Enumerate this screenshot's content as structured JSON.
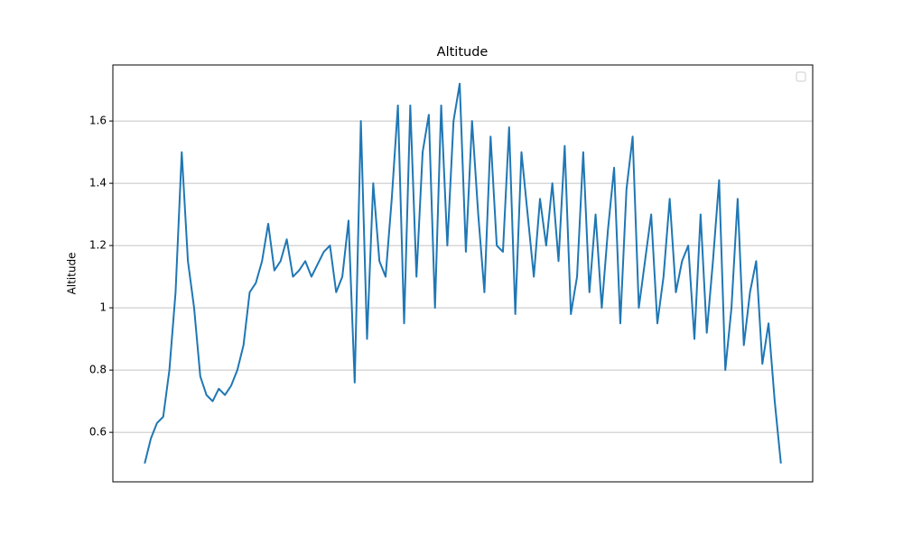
{
  "chart_data": {
    "type": "line",
    "title": "Altitude",
    "y_label": "Altitude",
    "x": [
      0,
      1,
      2,
      3,
      4,
      5,
      6,
      7,
      8,
      9,
      10,
      11,
      12,
      13,
      14,
      15,
      16,
      17,
      18,
      19,
      20,
      21,
      22,
      23,
      24,
      25,
      26,
      27,
      28,
      29,
      30,
      31,
      32,
      33,
      34,
      35,
      36,
      37,
      38,
      39,
      40,
      41,
      42,
      43,
      44,
      45,
      46,
      47,
      48,
      49,
      50,
      51,
      52,
      53,
      54,
      55,
      56,
      57,
      58,
      59,
      60,
      61,
      62,
      63,
      64,
      65,
      66,
      67,
      68,
      69,
      70,
      71,
      72,
      73,
      74,
      75,
      76,
      77,
      78,
      79,
      80,
      81,
      82,
      83,
      84,
      85,
      86,
      87,
      88,
      89,
      90,
      91,
      92,
      93,
      94,
      95,
      96,
      97,
      98,
      99,
      100,
      101,
      102,
      103
    ],
    "series": [
      {
        "color": "#1f77b4",
        "values": [
          0.5,
          0.58,
          0.63,
          0.65,
          0.8,
          1.05,
          1.5,
          1.15,
          1.0,
          0.78,
          0.72,
          0.7,
          0.74,
          0.72,
          0.75,
          0.8,
          0.88,
          1.05,
          1.08,
          1.15,
          1.27,
          1.12,
          1.15,
          1.22,
          1.1,
          1.12,
          1.15,
          1.1,
          1.14,
          1.18,
          1.2,
          1.05,
          1.1,
          1.28,
          0.76,
          1.6,
          0.9,
          1.4,
          1.15,
          1.1,
          1.35,
          1.65,
          0.95,
          1.65,
          1.1,
          1.5,
          1.62,
          1.0,
          1.65,
          1.2,
          1.6,
          1.72,
          1.18,
          1.6,
          1.3,
          1.05,
          1.55,
          1.2,
          1.18,
          1.58,
          0.98,
          1.5,
          1.3,
          1.1,
          1.35,
          1.2,
          1.4,
          1.15,
          1.52,
          0.98,
          1.1,
          1.5,
          1.05,
          1.3,
          1.0,
          1.25,
          1.45,
          0.95,
          1.38,
          1.55,
          1.0,
          1.15,
          1.3,
          0.95,
          1.1,
          1.35,
          1.05,
          1.15,
          1.2,
          0.9,
          1.3,
          0.92,
          1.15,
          1.41,
          0.8,
          1.0,
          1.35,
          0.88,
          1.05,
          1.15,
          0.82,
          0.95,
          0.7,
          0.5
        ]
      }
    ],
    "xlim": [
      -5.15,
      108.15
    ],
    "ylim": [
      0.441,
      1.78
    ],
    "yticks": [
      0.6,
      0.8,
      1.0,
      1.2,
      1.4,
      1.6
    ],
    "grid": true
  }
}
